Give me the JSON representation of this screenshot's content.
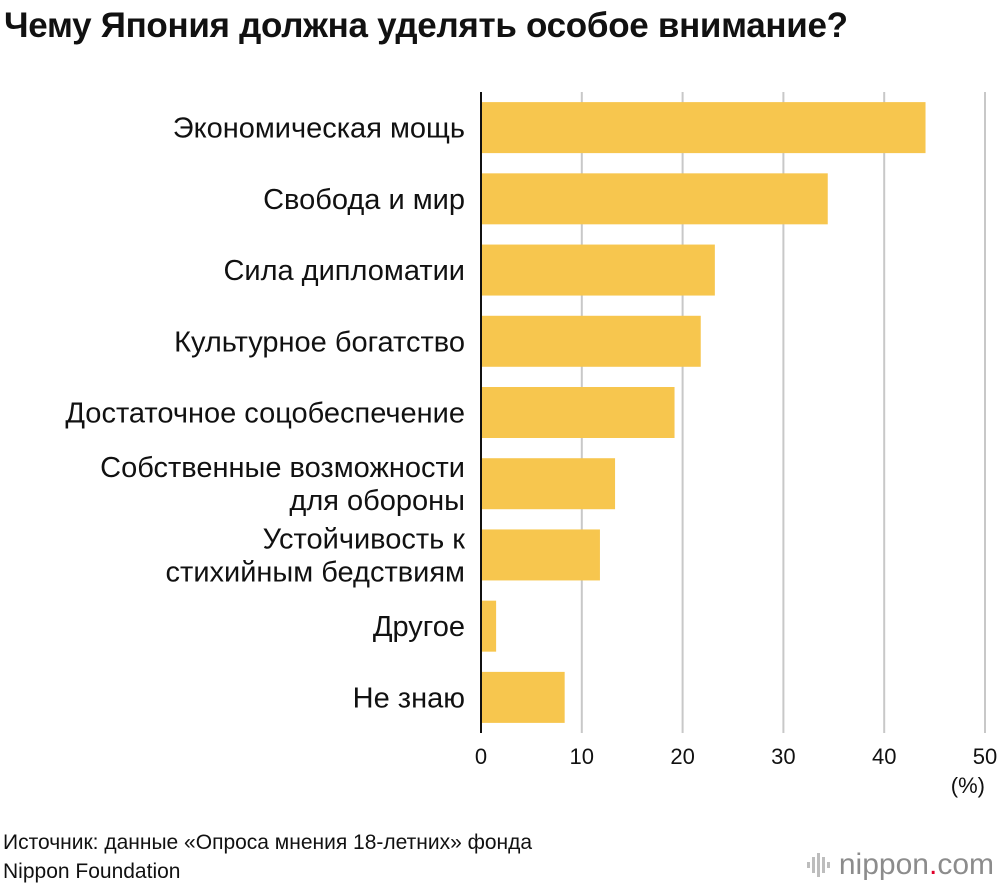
{
  "title": "Чему Япония должна уделять особое внимание?",
  "chart_data": {
    "type": "bar",
    "orientation": "horizontal",
    "title": "Чему Япония должна уделять особое внимание?",
    "categories": [
      [
        "Экономическая мощь"
      ],
      [
        "Свобода и мир"
      ],
      [
        "Сила дипломатии"
      ],
      [
        "Культурное богатство"
      ],
      [
        "Достаточное соцобеспечение"
      ],
      [
        "Собственные возможности",
        "для обороны"
      ],
      [
        "Устойчивость к",
        "стихийным бедствиям"
      ],
      [
        "Другое"
      ],
      [
        "Не знаю"
      ]
    ],
    "values": [
      44.1,
      34.4,
      23.2,
      21.8,
      19.2,
      13.3,
      11.8,
      1.5,
      8.3
    ],
    "xlim": [
      0,
      50
    ],
    "xticks": [
      "0",
      "10",
      "20",
      "30",
      "40",
      "50"
    ],
    "xunit": "(%)",
    "bar_color": "#f7c64e",
    "grid": true
  },
  "source": {
    "line1": "Источник: данные «Опроса мнения 18-летних» фонда",
    "line2": "Nippon Foundation"
  },
  "brand": {
    "name": "nippon",
    "dot": ".",
    "suffix": "com"
  }
}
